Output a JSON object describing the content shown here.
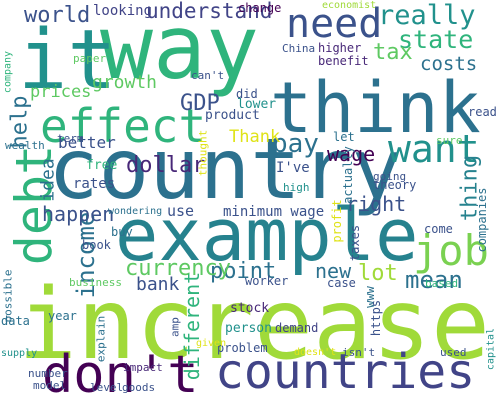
{
  "words": [
    {
      "text": "way",
      "color": "#2fb47c"
    },
    {
      "text": "country",
      "color": "#2c718e"
    },
    {
      "text": "increase",
      "color": "#a0da39"
    },
    {
      "text": "it",
      "color": "#21918c"
    },
    {
      "text": "think",
      "color": "#2c718e"
    },
    {
      "text": "example",
      "color": "#26828e"
    },
    {
      "text": "effect",
      "color": "#2fb47c"
    },
    {
      "text": "need",
      "color": "#3b528b"
    },
    {
      "text": "want",
      "color": "#21918c"
    },
    {
      "text": "debt",
      "color": "#2fb47c"
    },
    {
      "text": "don't",
      "color": "#440154"
    },
    {
      "text": "countries",
      "color": "#414487"
    },
    {
      "text": "job",
      "color": "#7ad151"
    },
    {
      "text": "really",
      "color": "#21918c"
    },
    {
      "text": "state",
      "color": "#2fb47c"
    },
    {
      "text": "world",
      "color": "#3b528b"
    },
    {
      "text": "understand",
      "color": "#414487"
    },
    {
      "text": "tax",
      "color": "#5ec962"
    },
    {
      "text": "costs",
      "color": "#2c718e"
    },
    {
      "text": "GDP",
      "color": "#3b528b"
    },
    {
      "text": "pay",
      "color": "#2c718e"
    },
    {
      "text": "wage",
      "color": "#440154"
    },
    {
      "text": "right",
      "color": "#3b528b"
    },
    {
      "text": "thing",
      "color": "#26828e"
    },
    {
      "text": "income",
      "color": "#2c718e"
    },
    {
      "text": "mean",
      "color": "#2c718e"
    },
    {
      "text": "lot",
      "color": "#a0da39"
    },
    {
      "text": "new",
      "color": "#2c718e"
    },
    {
      "text": "point",
      "color": "#2c718e"
    },
    {
      "text": "currency",
      "color": "#5ec962"
    },
    {
      "text": "dollar",
      "color": "#482878"
    },
    {
      "text": "help",
      "color": "#2c718e"
    },
    {
      "text": "idea",
      "color": "#2c718e"
    },
    {
      "text": "happen",
      "color": "#3b528b"
    },
    {
      "text": "growth",
      "color": "#5ec962"
    },
    {
      "text": "prices",
      "color": "#5ec962"
    },
    {
      "text": "different",
      "color": "#2fb47c"
    },
    {
      "text": "bank",
      "color": "#3b528b"
    },
    {
      "text": "better",
      "color": "#3b528b"
    },
    {
      "text": "Thank",
      "color": "#dfe318"
    },
    {
      "text": "I've",
      "color": "#3b528b"
    },
    {
      "text": "use",
      "color": "#3b528b"
    },
    {
      "text": "minimum wage",
      "color": "#3b528b"
    },
    {
      "text": "rates",
      "color": "#3b528b"
    },
    {
      "text": "looking",
      "color": "#414487"
    },
    {
      "text": "change",
      "color": "#440154"
    },
    {
      "text": "economist",
      "color": "#a0da39"
    },
    {
      "text": "company",
      "color": "#2fb47c"
    },
    {
      "text": "paper",
      "color": "#5ec962"
    },
    {
      "text": "can't",
      "color": "#3b528b"
    },
    {
      "text": "China",
      "color": "#3b528b"
    },
    {
      "text": "higher",
      "color": "#482878"
    },
    {
      "text": "benefit",
      "color": "#482878"
    },
    {
      "text": "read",
      "color": "#3b528b"
    },
    {
      "text": "did",
      "color": "#3b528b"
    },
    {
      "text": "lower",
      "color": "#21918c"
    },
    {
      "text": "product",
      "color": "#3b528b"
    },
    {
      "text": "let",
      "color": "#2c718e"
    },
    {
      "text": "sure",
      "color": "#5ec962"
    },
    {
      "text": "wealth",
      "color": "#2c718e"
    },
    {
      "text": "term",
      "color": "#3b528b"
    },
    {
      "text": "free",
      "color": "#2fb47c"
    },
    {
      "text": "thought",
      "color": "#dfe318"
    },
    {
      "text": "actually",
      "color": "#2c718e"
    },
    {
      "text": "going",
      "color": "#3b528b"
    },
    {
      "text": "theory",
      "color": "#3b528b"
    },
    {
      "text": "high",
      "color": "#21918c"
    },
    {
      "text": "companies",
      "color": "#2c718e"
    },
    {
      "text": "wondering",
      "color": "#2c718e"
    },
    {
      "text": "buy",
      "color": "#2c718e"
    },
    {
      "text": "profit",
      "color": "#dfe318"
    },
    {
      "text": "taxes",
      "color": "#3b528b"
    },
    {
      "text": "come",
      "color": "#3b528b"
    },
    {
      "text": "book",
      "color": "#3b528b"
    },
    {
      "text": "business",
      "color": "#5ec962"
    },
    {
      "text": "worker",
      "color": "#3b528b"
    },
    {
      "text": "case",
      "color": "#3b528b"
    },
    {
      "text": "based",
      "color": "#2fb47c"
    },
    {
      "text": "possible",
      "color": "#2c718e"
    },
    {
      "text": "year",
      "color": "#2c718e"
    },
    {
      "text": "stock",
      "color": "#482878"
    },
    {
      "text": "www",
      "color": "#2c718e"
    },
    {
      "text": "https",
      "color": "#3b528b"
    },
    {
      "text": "data",
      "color": "#2c718e"
    },
    {
      "text": "explain",
      "color": "#2c718e"
    },
    {
      "text": "amp",
      "color": "#3b528b"
    },
    {
      "text": "person",
      "color": "#21918c"
    },
    {
      "text": "demand",
      "color": "#414487"
    },
    {
      "text": "supply",
      "color": "#21918c"
    },
    {
      "text": "problem",
      "color": "#3b528b"
    },
    {
      "text": "doesn't",
      "color": "#dfe318"
    },
    {
      "text": "isn't",
      "color": "#3b528b"
    },
    {
      "text": "used",
      "color": "#3b528b"
    },
    {
      "text": "capital",
      "color": "#21918c"
    },
    {
      "text": "given",
      "color": "#dfe318"
    },
    {
      "text": "number",
      "color": "#3b528b"
    },
    {
      "text": "impact",
      "color": "#482878"
    },
    {
      "text": "model",
      "color": "#3b528b"
    },
    {
      "text": "level",
      "color": "#3b528b"
    },
    {
      "text": "goods",
      "color": "#3b528b"
    }
  ]
}
